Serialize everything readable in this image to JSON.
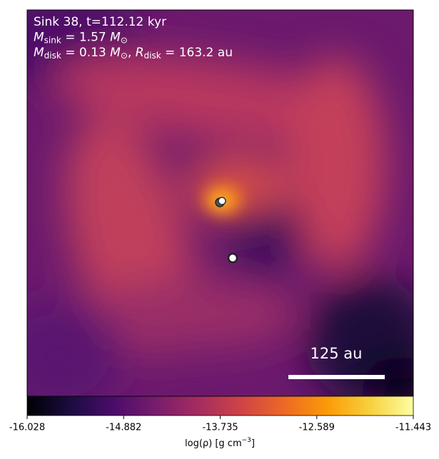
{
  "chart_data": {
    "type": "heatmap",
    "colormap": "inferno",
    "annotations": [
      [
        "Sink 38, t=112.12 kyr"
      ],
      [
        "M",
        "sink",
        " = 1.57 ",
        "M",
        "⊙"
      ],
      [
        "M",
        "disk",
        " = 0.13 ",
        "M",
        "⊙",
        ", ",
        "R",
        "disk",
        " = 163.2 au"
      ]
    ],
    "scale_bar_label": "125 au",
    "colorbar_label": [
      "log(ρ) [g cm",
      "−3",
      "]"
    ],
    "clim": [
      -16.028,
      -11.443
    ],
    "cticks": [
      -16.028,
      -14.882,
      -13.735,
      -12.589,
      -11.443
    ]
  }
}
